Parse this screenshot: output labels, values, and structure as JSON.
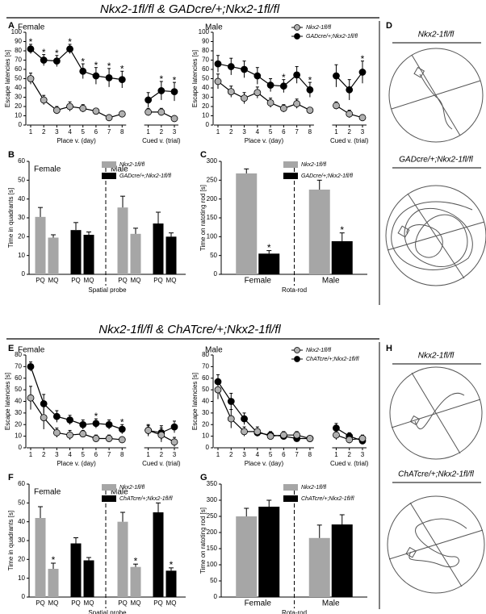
{
  "figure_titles": [
    "Nkx2-1fl/fl & GADcre/+;Nkx2-1fl/fl",
    "Nkx2-1fl/fl & ChATcre/+;Nkx2-1fl/fl"
  ],
  "panel_labels": [
    "A",
    "B",
    "C",
    "D",
    "E",
    "F",
    "G",
    "H"
  ],
  "maze_labels": [
    "Nkx2-1fl/fl",
    "GADcre/+;Nkx2-1fl/fl",
    "Nkx2-1fl/fl",
    "ChATcre/+;Nkx2-1fl/fl"
  ],
  "chart_data": [
    {
      "type": "line",
      "title": "Female",
      "ylabel": "Escape latencies [s]",
      "xlabels": [
        "Place v. (day)",
        "Cued v. (trial)"
      ],
      "categories": [
        "1",
        "2",
        "3",
        "4",
        "5",
        "6",
        "7",
        "8",
        null,
        "1",
        "2",
        "3"
      ],
      "ylim": [
        0,
        100
      ],
      "yticks": [
        0,
        10,
        20,
        30,
        40,
        50,
        60,
        70,
        80,
        90,
        100
      ],
      "series": [
        {
          "color": "#b0b0b0",
          "values": [
            50,
            27,
            16,
            20,
            18,
            15,
            8,
            12,
            null,
            14,
            14,
            7
          ],
          "errors": [
            6,
            5,
            4,
            5,
            4,
            3,
            2,
            2,
            null,
            4,
            4,
            3
          ]
        },
        {
          "color": "#000000",
          "values": [
            82,
            70,
            69,
            82,
            58,
            53,
            51,
            49,
            null,
            27,
            37,
            36
          ],
          "errors": [
            5,
            6,
            6,
            5,
            8,
            9,
            10,
            9,
            null,
            8,
            10,
            10
          ]
        }
      ],
      "significance": [
        "*",
        "*",
        "*",
        "*",
        "*",
        "*",
        "*",
        "*",
        null,
        null,
        "*",
        "*"
      ]
    },
    {
      "type": "line",
      "title": "Male",
      "ylabel": "Escape latencies [s]",
      "xlabels": [
        "Place v. (day)",
        "Cued v. (trial)"
      ],
      "categories": [
        "1",
        "2",
        "3",
        "4",
        "5",
        "6",
        "7",
        "8",
        null,
        "1",
        "2",
        "3"
      ],
      "ylim": [
        0,
        100
      ],
      "yticks": [
        0,
        10,
        20,
        30,
        40,
        50,
        60,
        70,
        80,
        90,
        100
      ],
      "series": [
        {
          "name": "Nkx2-1fl/fl",
          "color": "#b0b0b0",
          "values": [
            47,
            36,
            29,
            35,
            24,
            18,
            23,
            16,
            null,
            21,
            12,
            8
          ],
          "errors": [
            8,
            6,
            6,
            6,
            5,
            4,
            5,
            3,
            null,
            4,
            4,
            3
          ]
        },
        {
          "name": "GADcre/+;Nkx2-1fl/fl",
          "color": "#000000",
          "values": [
            66,
            63,
            60,
            53,
            43,
            42,
            54,
            38,
            null,
            53,
            38,
            57
          ],
          "errors": [
            9,
            9,
            9,
            9,
            7,
            7,
            9,
            8,
            null,
            12,
            11,
            12
          ]
        }
      ],
      "significance": [
        null,
        null,
        null,
        null,
        null,
        "*",
        null,
        "*",
        null,
        null,
        null,
        "*"
      ]
    },
    {
      "type": "bar",
      "ylabel": "Time in quadrants [s]",
      "xlabel": "Spatial probe",
      "groups": [
        "Female",
        "Male"
      ],
      "divider_line": "dashed",
      "categories": [
        "PQ",
        "MQ",
        "PQ",
        "MQ",
        "PQ",
        "MQ",
        "PQ",
        "MQ"
      ],
      "ylim": [
        0,
        60
      ],
      "yticks": [
        0,
        10,
        20,
        30,
        40,
        50,
        60
      ],
      "series": [
        {
          "name": "Nkx2-1fl/fl",
          "color": "#a6a6a6",
          "values": [
            30.5,
            19.5,
            null,
            null,
            35.5,
            21.5,
            null,
            null
          ],
          "errors": [
            5,
            1.5,
            null,
            null,
            6,
            3,
            null,
            null
          ],
          "significance": [
            null,
            null,
            null,
            null,
            null,
            null,
            null,
            null
          ]
        },
        {
          "name": "GADcre/+;Nkx2-1fl/fl",
          "color": "#000000",
          "values": [
            null,
            null,
            23.5,
            21,
            null,
            null,
            27,
            20
          ],
          "errors": [
            null,
            null,
            4,
            1.5,
            null,
            null,
            6,
            2
          ],
          "significance": [
            null,
            null,
            null,
            null,
            null,
            null,
            null,
            null
          ]
        }
      ]
    },
    {
      "type": "bar",
      "ylabel": "Time on ratoting rod [s]",
      "xlabel": "Rota-rod",
      "divider_line": "dashed",
      "categories": [
        "Female",
        "Male"
      ],
      "ylim": [
        0,
        300
      ],
      "yticks": [
        0,
        50,
        100,
        150,
        200,
        250,
        300
      ],
      "series": [
        {
          "name": "Nkx2-1fl/fl",
          "color": "#a6a6a6",
          "values": [
            268,
            225
          ],
          "errors": [
            12,
            25
          ],
          "significance": [
            null,
            null
          ]
        },
        {
          "name": "GADcre/+;Nkx2-1fl/fl",
          "color": "#000000",
          "values": [
            55,
            88
          ],
          "errors": [
            8,
            22
          ],
          "significance": [
            "*",
            "*"
          ]
        }
      ]
    },
    {
      "type": "line",
      "title": "Female",
      "ylabel": "Escape latencies [s]",
      "xlabels": [
        "Place v. (day)",
        "Cued v. (trial)"
      ],
      "categories": [
        "1",
        "2",
        "3",
        "4",
        "5",
        "6",
        "7",
        "8",
        null,
        "1",
        "2",
        "3"
      ],
      "ylim": [
        0,
        80
      ],
      "yticks": [
        0,
        10,
        20,
        30,
        40,
        50,
        60,
        70,
        80
      ],
      "series": [
        {
          "color": "#b0b0b0",
          "values": [
            43,
            26,
            13,
            11,
            12,
            8,
            8,
            7,
            null,
            15,
            11,
            5
          ],
          "errors": [
            10,
            10,
            4,
            4,
            3,
            3,
            3,
            2,
            null,
            4,
            6,
            4
          ]
        },
        {
          "color": "#000000",
          "values": [
            70,
            38,
            27,
            24,
            20,
            21,
            20,
            16,
            null,
            15,
            13,
            18
          ],
          "errors": [
            4,
            8,
            5,
            4,
            4,
            4,
            4,
            4,
            null,
            5,
            6,
            5
          ]
        }
      ],
      "significance": [
        null,
        null,
        null,
        null,
        null,
        "*",
        null,
        "*",
        null,
        null,
        null,
        null
      ]
    },
    {
      "type": "line",
      "title": "Male",
      "ylabel": "Escape latencies [s]",
      "xlabels": [
        "Place v. (day)",
        "Cued v. (trial)"
      ],
      "categories": [
        "1",
        "2",
        "3",
        "4",
        "5",
        "6",
        "7",
        "8",
        null,
        "1",
        "2",
        "3"
      ],
      "ylim": [
        0,
        80
      ],
      "yticks": [
        0,
        10,
        20,
        30,
        40,
        50,
        60,
        70,
        80
      ],
      "series": [
        {
          "name": "Nkx2-1fl/fl",
          "color": "#b0b0b0",
          "values": [
            50,
            25,
            14,
            14,
            10,
            11,
            11,
            8,
            null,
            11,
            7,
            8
          ],
          "errors": [
            8,
            8,
            4,
            4,
            3,
            3,
            3,
            2,
            null,
            4,
            3,
            3
          ]
        },
        {
          "name": "ChATcre/+;Nkx2-1fl/fl",
          "color": "#000000",
          "values": [
            57,
            40,
            25,
            13,
            11,
            10,
            8,
            8,
            null,
            17,
            10,
            6
          ],
          "errors": [
            6,
            7,
            5,
            3,
            3,
            3,
            2,
            2,
            null,
            4,
            3,
            3
          ]
        }
      ],
      "significance": [
        null,
        null,
        null,
        null,
        null,
        null,
        null,
        null,
        null,
        null,
        null,
        null
      ]
    },
    {
      "type": "bar",
      "ylabel": "Time in quadrants [s]",
      "xlabel": "Spatial probe",
      "groups": [
        "Female",
        "Male"
      ],
      "divider_line": "dashed",
      "categories": [
        "PQ",
        "MQ",
        "PQ",
        "MQ",
        "PQ",
        "MQ",
        "PQ",
        "MQ"
      ],
      "ylim": [
        0,
        60
      ],
      "yticks": [
        0,
        10,
        20,
        30,
        40,
        50,
        60
      ],
      "series": [
        {
          "name": "Nkx2-1fl/fl",
          "color": "#a6a6a6",
          "values": [
            42,
            15,
            null,
            null,
            40,
            16,
            null,
            null
          ],
          "errors": [
            6,
            3,
            null,
            null,
            5,
            1.5,
            null,
            null
          ],
          "significance": [
            null,
            "*",
            null,
            null,
            null,
            "*",
            null,
            null
          ]
        },
        {
          "name": "ChATcre/+;Nkx2-1fl/fl",
          "color": "#000000",
          "values": [
            null,
            null,
            28.5,
            19.5,
            null,
            null,
            45,
            14
          ],
          "errors": [
            null,
            null,
            3,
            1.5,
            null,
            null,
            5,
            1.5
          ],
          "significance": [
            null,
            null,
            null,
            null,
            null,
            null,
            null,
            "*"
          ]
        }
      ]
    },
    {
      "type": "bar",
      "ylabel": "Time on ratoting rod [s]",
      "xlabel": "Rota-rod",
      "divider_line": "dashed",
      "categories": [
        "Female",
        "Male"
      ],
      "ylim": [
        0,
        350
      ],
      "yticks": [
        0,
        50,
        100,
        150,
        200,
        250,
        300,
        350
      ],
      "series": [
        {
          "name": "Nkx2-1fl/fl",
          "color": "#a6a6a6",
          "values": [
            250,
            183
          ],
          "errors": [
            25,
            40
          ],
          "significance": [
            null,
            null
          ]
        },
        {
          "name": "ChATcre/+;Nkx2-1fl/fl",
          "color": "#000000",
          "values": [
            280,
            225
          ],
          "errors": [
            20,
            30
          ],
          "significance": [
            null,
            null
          ]
        }
      ]
    }
  ]
}
